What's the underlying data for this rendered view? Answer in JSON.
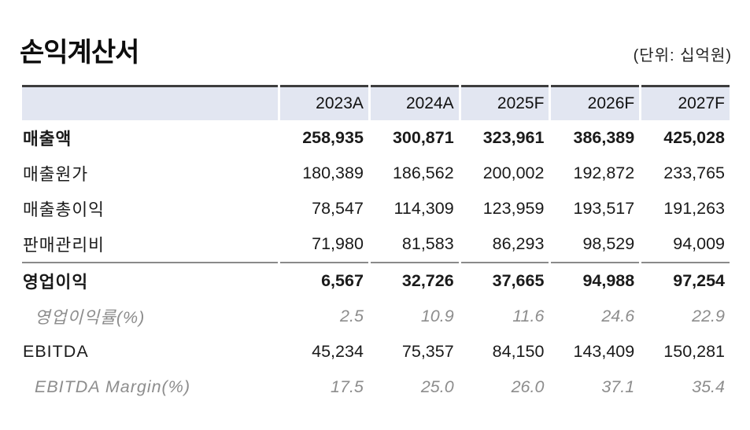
{
  "page": {
    "title": "손익계산서",
    "unit_label": "(단위: 십억원)"
  },
  "table": {
    "columns": [
      "2023A",
      "2024A",
      "2025F",
      "2026F",
      "2027F"
    ],
    "rows": [
      {
        "label": "매출액",
        "emphasis": "bold",
        "values": [
          "258,935",
          "300,871",
          "323,961",
          "386,389",
          "425,028"
        ]
      },
      {
        "label": "매출원가",
        "emphasis": "normal",
        "values": [
          "180,389",
          "186,562",
          "200,002",
          "192,872",
          "233,765"
        ]
      },
      {
        "label": "매출총이익",
        "emphasis": "normal",
        "values": [
          "78,547",
          "114,309",
          "123,959",
          "193,517",
          "191,263"
        ]
      },
      {
        "label": "판매관리비",
        "emphasis": "normal",
        "values": [
          "71,980",
          "81,583",
          "86,293",
          "98,529",
          "94,009"
        ]
      },
      {
        "label": "영업이익",
        "emphasis": "bold",
        "values": [
          "6,567",
          "32,726",
          "37,665",
          "94,988",
          "97,254"
        ]
      },
      {
        "label": "영업이익률(%)",
        "emphasis": "italic",
        "values": [
          "2.5",
          "10.9",
          "11.6",
          "24.6",
          "22.9"
        ]
      },
      {
        "label": "EBITDA",
        "emphasis": "normal",
        "values": [
          "45,234",
          "75,357",
          "84,150",
          "143,409",
          "150,281"
        ]
      },
      {
        "label": "EBITDA Margin(%)",
        "emphasis": "italic",
        "values": [
          "17.5",
          "25.0",
          "26.0",
          "37.1",
          "35.4"
        ]
      }
    ]
  },
  "colors": {
    "header_bg": "#e2e6f1",
    "top_border": "#3d3d3d",
    "section_divider": "#8a8a8a",
    "text": "#1a1a1a",
    "muted_text": "#8d8d8d"
  }
}
